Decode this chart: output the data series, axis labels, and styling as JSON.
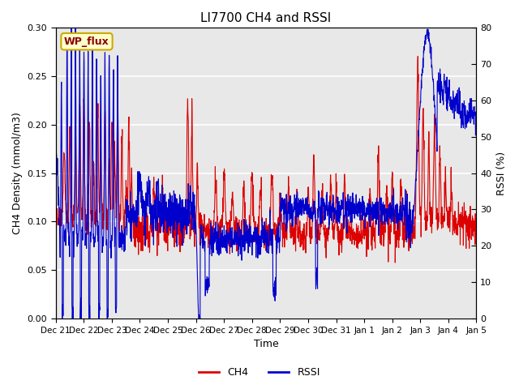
{
  "title": "LI7700 CH4 and RSSI",
  "xlabel": "Time",
  "ylabel_left": "CH4 Density (mmol/m3)",
  "ylabel_right": "RSSI (%)",
  "site_label": "WP_flux",
  "ylim_left": [
    0.0,
    0.3
  ],
  "ylim_right": [
    0,
    80
  ],
  "yticks_left": [
    0.0,
    0.05,
    0.1,
    0.15,
    0.2,
    0.25,
    0.3
  ],
  "yticks_right": [
    0,
    10,
    20,
    30,
    40,
    50,
    60,
    70,
    80
  ],
  "bg_color": "#e8e8e8",
  "ch4_color": "#dd0000",
  "rssi_color": "#0000cc",
  "line_width": 0.8,
  "n_points": 2000,
  "figsize": [
    6.4,
    4.8
  ],
  "dpi": 100
}
